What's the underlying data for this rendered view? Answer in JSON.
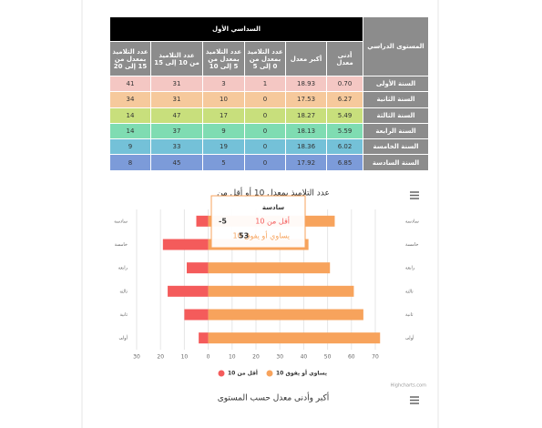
{
  "table": {
    "row_header_title": "المستوى الدراسي",
    "group_title": "السداسي الأول",
    "columns": [
      "أدنى معدل",
      "أكبر معدل",
      "عدد التلاميذ بمعدل من 0 إلى 5",
      "عدد التلاميذ بمعدل من 5 إلى 10",
      "عدد التلاميذ من 10 إلى 15",
      "عدد التلاميذ بمعدل من 15 إلى 20"
    ],
    "rows": [
      {
        "label": "السنة الأولى",
        "cells": [
          "0.70",
          "18.93",
          "1",
          "3",
          "31",
          "41"
        ],
        "color": "#f4c7c3"
      },
      {
        "label": "السنة الثانية",
        "cells": [
          "6.27",
          "17.53",
          "0",
          "10",
          "31",
          "34"
        ],
        "color": "#f6c99c"
      },
      {
        "label": "السنة الثالثة",
        "cells": [
          "5.49",
          "18.27",
          "0",
          "17",
          "47",
          "14"
        ],
        "color": "#c8df7c"
      },
      {
        "label": "السنة الرابعة",
        "cells": [
          "5.59",
          "18.13",
          "0",
          "9",
          "37",
          "14"
        ],
        "color": "#7fdcb2"
      },
      {
        "label": "السنة الخامسة",
        "cells": [
          "6.02",
          "18.36",
          "0",
          "19",
          "33",
          "9"
        ],
        "color": "#74c1d8"
      },
      {
        "label": "السنة السادسة",
        "cells": [
          "6.85",
          "17.92",
          "0",
          "5",
          "45",
          "8"
        ],
        "color": "#7c9bd9"
      }
    ]
  },
  "chart_data": [
    {
      "type": "bar",
      "orientation": "horizontal",
      "title": "عدد التلاميذ بمعدل 10 أو أقل من",
      "categories": [
        "سادسة",
        "خامسة",
        "رابعة",
        "ثالثة",
        "ثانية",
        "أولى"
      ],
      "series": [
        {
          "name": "أقل من 10",
          "color": "#f45b5b",
          "values": [
            -5,
            -19,
            -9,
            -17,
            -10,
            -4
          ]
        },
        {
          "name": "يساوي أو يفوق 10",
          "color": "#f7a35c",
          "values": [
            53,
            42,
            51,
            61,
            65,
            72
          ]
        }
      ],
      "xlim": [
        -30,
        70
      ],
      "xticks": [
        {
          "value": -30,
          "label": "30"
        },
        {
          "value": -20,
          "label": "20"
        },
        {
          "value": -10,
          "label": "10"
        },
        0,
        10,
        20,
        30,
        40,
        50,
        60,
        70
      ],
      "grid": true,
      "tooltip": {
        "category": "سادسة",
        "point": 0
      },
      "credits": "Highcharts.com"
    },
    {
      "type": "bar",
      "title": "أكبر وأدنى معدل حسب المستوى"
    }
  ]
}
